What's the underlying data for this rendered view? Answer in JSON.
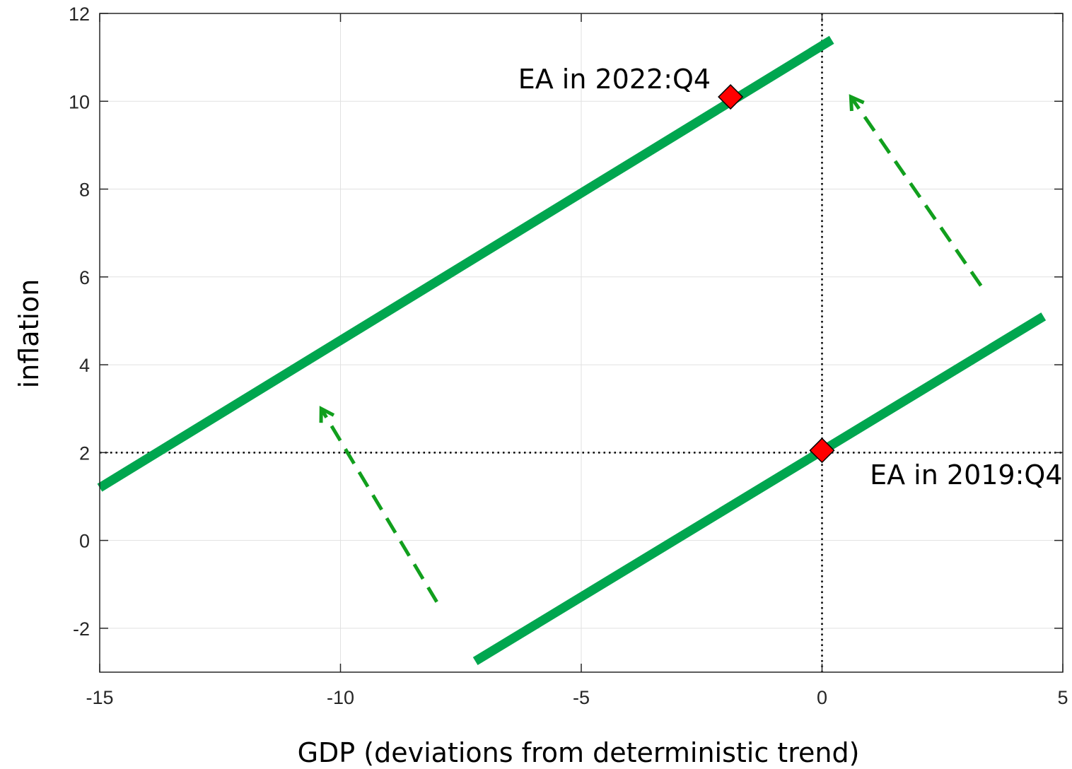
{
  "chart_data": {
    "type": "line",
    "title": "",
    "xlabel": "GDP (deviations from deterministic trend)",
    "ylabel": "inflation",
    "xlim": [
      -15,
      5
    ],
    "ylim": [
      -3,
      12
    ],
    "xticks": [
      -15,
      -10,
      -5,
      0,
      5
    ],
    "yticks": [
      -2,
      0,
      2,
      4,
      6,
      8,
      10,
      12
    ],
    "xtick_labels": [
      "-15",
      "-10",
      "-5",
      "0",
      "5"
    ],
    "ytick_labels": [
      "-2",
      "0",
      "2",
      "4",
      "6",
      "8",
      "10",
      "12"
    ],
    "grid": true,
    "reference_lines": [
      {
        "orientation": "horizontal",
        "value": 2,
        "style": "dotted",
        "color": "#000000"
      },
      {
        "orientation": "vertical",
        "value": 0,
        "style": "dotted",
        "color": "#000000"
      }
    ],
    "series": [
      {
        "style": "solid",
        "color": "#00a64f",
        "x": [
          -15,
          0.2
        ],
        "y": [
          1.2,
          11.4
        ]
      },
      {
        "style": "solid",
        "color": "#00a64f",
        "x": [
          -7.2,
          4.6
        ],
        "y": [
          -2.75,
          5.1
        ]
      }
    ],
    "arrows": [
      {
        "style": "dashed",
        "color": "#119f1d",
        "from": [
          -8.0,
          -1.4
        ],
        "to": [
          -10.4,
          3.0
        ]
      },
      {
        "style": "dashed",
        "color": "#119f1d",
        "from": [
          3.3,
          5.8
        ],
        "to": [
          0.6,
          10.1
        ]
      }
    ],
    "markers": [
      {
        "label": "EA in 2022:Q4",
        "x": -1.9,
        "y": 10.1,
        "shape": "diamond",
        "color": "#ff0000"
      },
      {
        "label": "EA in 2019:Q4",
        "x": 0.0,
        "y": 2.05,
        "shape": "diamond",
        "color": "#ff0000"
      }
    ]
  },
  "colors": {
    "line": "#00a64f",
    "arrow": "#119f1d",
    "marker_fill": "#ff0000",
    "grid": "#e1e1e1",
    "axis": "#262626"
  }
}
